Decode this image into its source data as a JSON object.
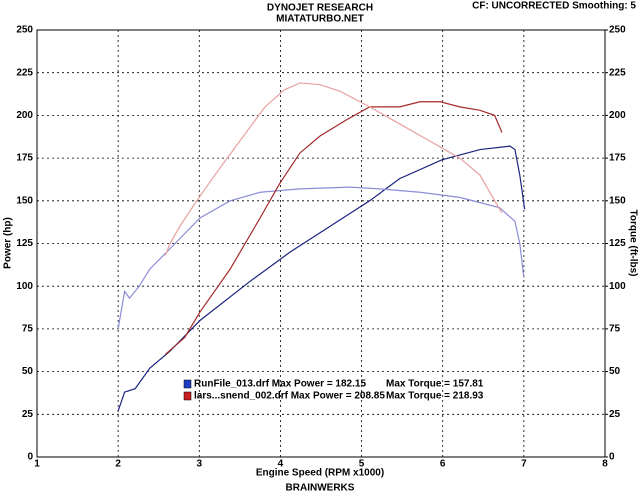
{
  "chart_data": {
    "type": "line",
    "title": "DYNOJET RESEARCH",
    "subtitle": "MIATATURBO.NET",
    "settings_text": "CF: UNCORRECTED  Smoothing: 5",
    "footer": "BRAINWERKS",
    "x_label": "Engine Speed (RPM x1000)",
    "y_label": "Power (hp)",
    "y2_label": "Torque (ft-lbs)",
    "xlim": [
      1,
      8
    ],
    "xticks": [
      1,
      2,
      3,
      4,
      5,
      6,
      7,
      8
    ],
    "ylim": [
      0,
      250
    ],
    "yticks": [
      0,
      25,
      50,
      75,
      100,
      125,
      150,
      175,
      200,
      225,
      250
    ],
    "y2lim": [
      0,
      250
    ],
    "y2ticks": [
      0,
      25,
      50,
      75,
      100,
      125,
      150,
      175,
      200,
      225,
      250
    ],
    "grid": true,
    "series": [
      {
        "color": "#1a237e",
        "axis": "y",
        "x": [
          2.0,
          2.08,
          2.21,
          2.39,
          2.64,
          3.01,
          3.63,
          4.12,
          4.61,
          5.1,
          5.47,
          5.99,
          6.46,
          6.83,
          6.89,
          6.95,
          7.01
        ],
        "values": [
          27,
          38,
          40,
          52,
          62,
          80,
          103,
          120,
          135,
          150,
          163,
          174,
          180,
          182,
          180,
          165,
          145
        ]
      },
      {
        "color": "#8c8cd8",
        "axis": "y2",
        "x": [
          2.0,
          2.08,
          2.14,
          2.26,
          2.39,
          2.64,
          3.01,
          3.38,
          3.75,
          4.24,
          4.86,
          5.22,
          5.72,
          6.21,
          6.7,
          6.89,
          6.95,
          7.0
        ],
        "values": [
          75,
          97,
          93,
          100,
          110,
          122,
          140,
          150,
          155,
          157,
          158,
          157,
          155,
          152,
          146,
          138,
          125,
          105
        ]
      },
      {
        "color": "#a52a2a",
        "axis": "y",
        "x": [
          2.58,
          2.82,
          3.01,
          3.38,
          3.75,
          3.99,
          4.24,
          4.49,
          4.8,
          5.1,
          5.47,
          5.72,
          5.97,
          6.21,
          6.46,
          6.64,
          6.73
        ],
        "values": [
          60,
          70,
          85,
          110,
          140,
          160,
          178,
          188,
          197,
          205,
          205,
          208,
          208,
          205,
          203,
          200,
          190
        ]
      },
      {
        "color": "#e8a0a0",
        "axis": "y2",
        "x": [
          2.58,
          2.64,
          2.76,
          2.94,
          3.19,
          3.5,
          3.81,
          4.05,
          4.24,
          4.49,
          4.74,
          5.1,
          5.47,
          5.84,
          6.21,
          6.46,
          6.64,
          6.73
        ],
        "values": [
          118,
          125,
          135,
          148,
          165,
          185,
          205,
          215,
          219,
          218,
          214,
          205,
          195,
          185,
          175,
          165,
          150,
          143
        ]
      }
    ],
    "legend": [
      {
        "color": "#1f3cc8",
        "label": "RunFile_013.drf Max Power = 182.15",
        "torque_label": "Max Torque = 157.81"
      },
      {
        "color": "#c82020",
        "label": "lars...snend_002.drf Max Power = 208.85",
        "torque_label": "Max Torque = 218.93"
      }
    ]
  }
}
